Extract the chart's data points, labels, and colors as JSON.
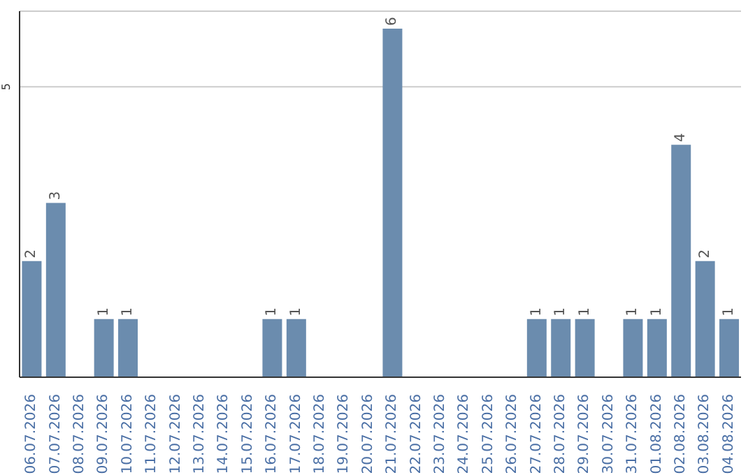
{
  "chart_data": {
    "type": "bar",
    "categories": [
      "06.07.2026",
      "07.07.2026",
      "08.07.2026",
      "09.07.2026",
      "10.07.2026",
      "11.07.2026",
      "12.07.2026",
      "13.07.2026",
      "14.07.2026",
      "15.07.2026",
      "16.07.2026",
      "17.07.2026",
      "18.07.2026",
      "19.07.2026",
      "20.07.2026",
      "21.07.2026",
      "22.07.2026",
      "23.07.2026",
      "24.07.2026",
      "25.07.2026",
      "26.07.2026",
      "27.07.2026",
      "28.07.2026",
      "29.07.2026",
      "30.07.2026",
      "31.07.2026",
      "01.08.2026",
      "02.08.2026",
      "03.08.2026",
      "04.08.2026"
    ],
    "values": [
      2,
      3,
      0,
      1,
      1,
      0,
      0,
      0,
      0,
      0,
      1,
      1,
      0,
      0,
      0,
      6,
      0,
      0,
      0,
      0,
      0,
      1,
      1,
      1,
      0,
      1,
      1,
      4,
      2,
      1
    ],
    "value_labels": [
      "2",
      "3",
      null,
      "1",
      "1",
      null,
      null,
      null,
      null,
      null,
      "1",
      "1",
      null,
      null,
      null,
      "6",
      null,
      null,
      null,
      null,
      null,
      "1",
      "1",
      "1",
      null,
      "1",
      "1",
      "4",
      "2",
      "1"
    ],
    "color": "#6b8cae",
    "ylim": [
      0,
      6.3
    ],
    "yticks": [
      5
    ],
    "grid": "y"
  }
}
